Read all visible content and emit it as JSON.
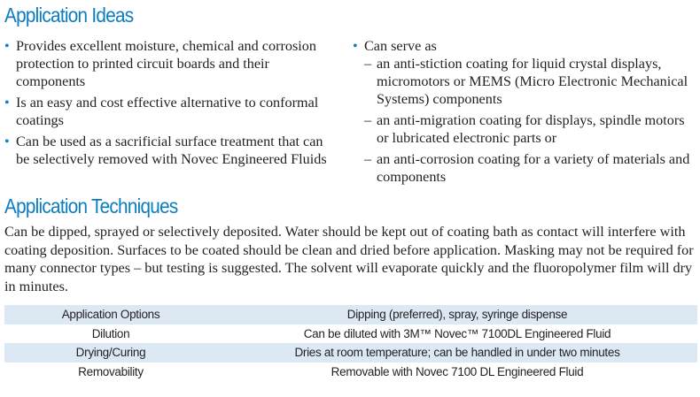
{
  "ideas": {
    "title": "Application Ideas",
    "left": [
      "Provides excellent moisture, chemical and corrosion protection to printed circuit boards and their components",
      "Is an easy and cost effective alternative to conformal coatings",
      "Can be used as a sacrificial surface treatment that can be selectively removed with Novec Engineered Fluids"
    ],
    "right_intro": "Can serve as",
    "right_sub": [
      "an anti-stiction coating for liquid crystal displays, micromotors or MEMS (Micro Electronic Mechanical Systems) components",
      "an anti-migration coating for displays, spindle motors or lubricated electronic parts or",
      "an anti-corrosion coating for a variety of materials and components"
    ]
  },
  "techniques": {
    "title": "Application Techniques",
    "paragraph": "Can be dipped, sprayed or selectively deposited. Water should be kept out of coating bath as contact will interfere with coating deposition. Surfaces to be coated should be clean and dried before application. Masking may not be required for many connector types – but testing is suggested. The solvent will evaporate quickly and the fluoropolymer film will dry in minutes.",
    "table": [
      {
        "label": "Application Options",
        "value": "Dipping (preferred), spray, syringe dispense"
      },
      {
        "label": "Dilution",
        "value": "Can be diluted with 3M™ Novec™ 7100DL Engineered Fluid"
      },
      {
        "label": "Drying/Curing",
        "value": "Dries at room temperature; can be handled in under two minutes"
      },
      {
        "label": "Removability",
        "value": "Removable with Novec 7100 DL Engineered Fluid"
      }
    ]
  },
  "colors": {
    "heading": "#0b7dc1",
    "band": "#dce9f5"
  }
}
